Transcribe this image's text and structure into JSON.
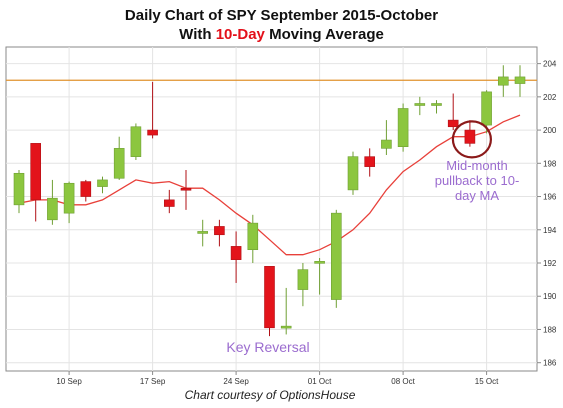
{
  "title": {
    "line1": "Daily Chart of SPY September 2015-October",
    "line2_pre": "With ",
    "line2_highlight": "10-Day",
    "line2_post": " Moving Average"
  },
  "caption": "Chart courtesy of OptionsHouse",
  "colors": {
    "up": "#8cc63f",
    "down": "#e3141b",
    "ma": "#e8403a",
    "resistance": "#e0922e",
    "annotation": "#9b6ccf",
    "circle": "#8b1a1a",
    "grid": "#e4e4e4",
    "axis": "#8a8a8a"
  },
  "chart_data": {
    "type": "candlestick",
    "title": "Daily Chart of SPY September 2015-October With 10-Day Moving Average",
    "ylim": [
      185.5,
      205
    ],
    "y_ticks": [
      186,
      188,
      190,
      192,
      194,
      196,
      198,
      200,
      202,
      204
    ],
    "x_ticks": [
      {
        "label": "10 Sep",
        "index": 3
      },
      {
        "label": "17 Sep",
        "index": 8
      },
      {
        "label": "24 Sep",
        "index": 13
      },
      {
        "label": "01 Oct",
        "index": 18
      },
      {
        "label": "08 Oct",
        "index": 23
      },
      {
        "label": "15 Oct",
        "index": 28
      }
    ],
    "candles": [
      {
        "open": 195.5,
        "high": 197.6,
        "low": 195.0,
        "close": 197.4
      },
      {
        "open": 199.2,
        "high": 199.2,
        "low": 194.5,
        "close": 195.8
      },
      {
        "open": 194.6,
        "high": 197.0,
        "low": 194.3,
        "close": 195.9
      },
      {
        "open": 195.0,
        "high": 196.9,
        "low": 194.4,
        "close": 196.8
      },
      {
        "open": 196.9,
        "high": 197.0,
        "low": 195.7,
        "close": 196.0
      },
      {
        "open": 196.6,
        "high": 197.2,
        "low": 196.2,
        "close": 197.0
      },
      {
        "open": 197.1,
        "high": 199.6,
        "low": 197.0,
        "close": 198.9
      },
      {
        "open": 198.4,
        "high": 200.4,
        "low": 198.2,
        "close": 200.2
      },
      {
        "open": 200.0,
        "high": 202.9,
        "low": 199.5,
        "close": 199.7
      },
      {
        "open": 195.8,
        "high": 196.4,
        "low": 195.0,
        "close": 195.4
      },
      {
        "open": 196.5,
        "high": 197.6,
        "low": 195.2,
        "close": 196.4
      },
      {
        "open": 193.9,
        "high": 194.6,
        "low": 193.0,
        "close": 193.9
      },
      {
        "open": 194.2,
        "high": 194.6,
        "low": 193.0,
        "close": 193.7
      },
      {
        "open": 193.0,
        "high": 193.9,
        "low": 190.8,
        "close": 192.2
      },
      {
        "open": 192.8,
        "high": 194.9,
        "low": 192.0,
        "close": 194.4
      },
      {
        "open": 191.8,
        "high": 191.8,
        "low": 187.6,
        "close": 188.1
      },
      {
        "open": 188.2,
        "high": 190.5,
        "low": 187.7,
        "close": 188.2
      },
      {
        "open": 190.4,
        "high": 192.0,
        "low": 189.4,
        "close": 191.6
      },
      {
        "open": 192.1,
        "high": 192.3,
        "low": 190.1,
        "close": 192.1
      },
      {
        "open": 189.8,
        "high": 195.2,
        "low": 189.3,
        "close": 195.0
      },
      {
        "open": 196.4,
        "high": 198.7,
        "low": 196.1,
        "close": 198.4
      },
      {
        "open": 198.4,
        "high": 198.9,
        "low": 197.2,
        "close": 197.8
      },
      {
        "open": 198.9,
        "high": 200.6,
        "low": 198.5,
        "close": 199.4
      },
      {
        "open": 199.0,
        "high": 201.6,
        "low": 198.7,
        "close": 201.3
      },
      {
        "open": 201.6,
        "high": 202.0,
        "low": 200.9,
        "close": 201.6
      },
      {
        "open": 201.5,
        "high": 201.8,
        "low": 201.0,
        "close": 201.6
      },
      {
        "open": 200.6,
        "high": 202.2,
        "low": 200.0,
        "close": 200.2
      },
      {
        "open": 200.0,
        "high": 200.6,
        "low": 199.0,
        "close": 199.2
      },
      {
        "open": 200.3,
        "high": 202.4,
        "low": 199.8,
        "close": 202.3
      },
      {
        "open": 202.7,
        "high": 203.9,
        "low": 202.0,
        "close": 203.2
      },
      {
        "open": 202.8,
        "high": 203.9,
        "low": 202.0,
        "close": 203.2
      }
    ],
    "moving_average": [
      195.6,
      195.8,
      195.8,
      195.5,
      195.5,
      195.8,
      196.4,
      197.0,
      196.8,
      196.9,
      196.5,
      196.5,
      195.8,
      195.0,
      194.3,
      193.4,
      192.5,
      192.5,
      192.8,
      193.3,
      194.0,
      195.0,
      196.4,
      197.5,
      198.2,
      199.0,
      199.6,
      199.6,
      199.9,
      200.5,
      200.9
    ],
    "resistance_level": 203.0,
    "annotations": [
      {
        "text": "Mid-month pullback to 10-day MA",
        "lines": [
          "Mid-month",
          "pullback to 10-",
          "day MA"
        ],
        "x_index": 27,
        "y_value": 199.5
      },
      {
        "text": "Key Reversal",
        "x_index": 16,
        "y_value": 187.0
      }
    ]
  }
}
